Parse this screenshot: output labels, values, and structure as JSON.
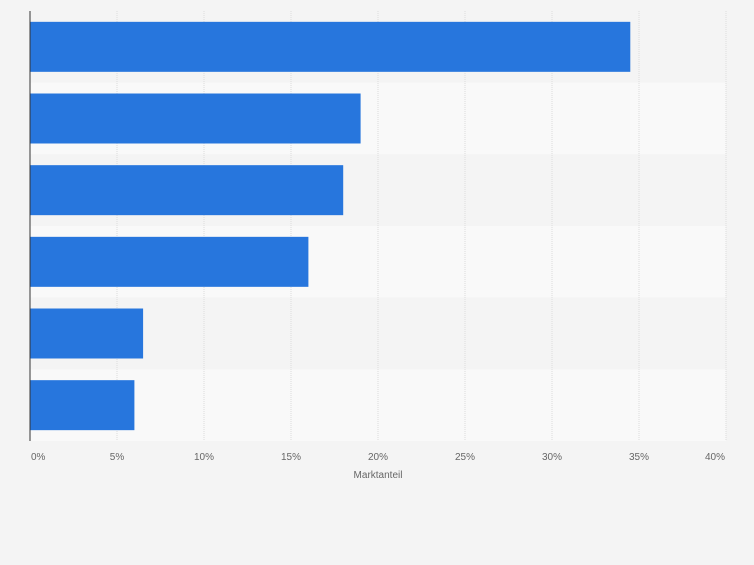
{
  "chart_data": {
    "type": "bar",
    "orientation": "horizontal",
    "categories": [
      "",
      "",
      "",
      "",
      "",
      ""
    ],
    "values": [
      34.5,
      19.0,
      18.0,
      16.0,
      6.5,
      6.0
    ],
    "title": "",
    "xlabel": "Marktanteil",
    "ylabel": "",
    "xlim": [
      0,
      40
    ],
    "xticks": [
      0,
      5,
      10,
      15,
      20,
      25,
      30,
      35,
      40
    ],
    "tick_labels": [
      "0%",
      "5%",
      "10%",
      "15%",
      "20%",
      "25%",
      "30%",
      "35%",
      "40%"
    ],
    "grid": true,
    "legend": "none"
  },
  "colors": {
    "bar": "#2776dd",
    "background": "#f4f4f4",
    "band_light": "#f9f9f9",
    "band_dark": "#f4f4f4",
    "grid": "#dcdcdc",
    "axis": "#333333",
    "text": "#666666"
  }
}
